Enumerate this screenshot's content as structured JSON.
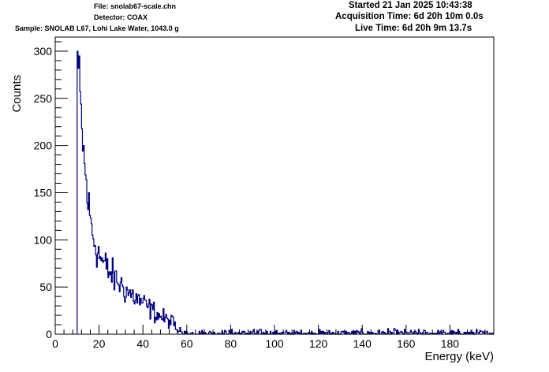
{
  "header": {
    "file": "File: snolab67-scale.chn",
    "detector": "Detector: COAX",
    "sample": "Sample: SNOLAB L67, Lohi Lake Water, 1043.0 g",
    "started": "Started 21 Jan 2025 10:43:38",
    "acquisition": "Acquisition Time: 6d 20h 10m 0.0s",
    "live": "Live Time: 6d 20h 9m 13.7s"
  },
  "colors": {
    "histogram": "#000080",
    "axis": "#000000",
    "background": "#ffffff"
  },
  "chart_data": {
    "type": "line",
    "title": "",
    "xlabel": "Energy (keV)",
    "ylabel": "Counts",
    "xlim": [
      0,
      200
    ],
    "ylim": [
      0,
      315
    ],
    "x_ticks": [
      0,
      20,
      40,
      60,
      80,
      100,
      120,
      140,
      160,
      180
    ],
    "x_tick_labels": [
      "0",
      "20",
      "40",
      "60",
      "80",
      "100",
      "120",
      "140",
      "160",
      "180"
    ],
    "y_ticks": [
      0,
      50,
      100,
      150,
      200,
      250,
      300
    ],
    "y_tick_labels": [
      "0",
      "50",
      "100",
      "150",
      "200",
      "250",
      "300"
    ],
    "grid": false,
    "legend": "none",
    "bin_width_keV": 0.4,
    "series": [
      {
        "x": [
          10,
          11,
          12,
          13,
          14,
          15,
          16,
          17,
          18,
          19,
          20,
          22,
          24,
          26,
          28,
          30,
          32,
          34,
          36,
          38,
          40,
          42,
          44,
          46,
          48,
          50,
          52,
          54,
          55,
          56,
          58,
          60,
          70,
          80,
          90,
          100,
          120,
          140,
          160,
          180,
          200
        ],
        "y": [
          300,
          265,
          222,
          190,
          162,
          140,
          122,
          108,
          98,
          90,
          84,
          75,
          68,
          62,
          57,
          52,
          47,
          43,
          40,
          36,
          33,
          29,
          26,
          22,
          19,
          16,
          14,
          12,
          7,
          5,
          4,
          3.5,
          3,
          3,
          3,
          2.5,
          2.5,
          2.5,
          2,
          2,
          2
        ]
      }
    ]
  }
}
